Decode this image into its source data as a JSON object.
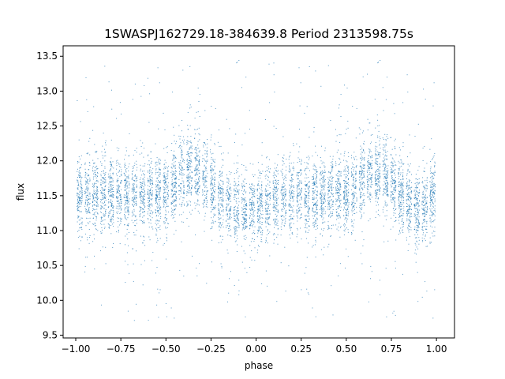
{
  "chart_data": {
    "type": "scatter",
    "title": "1SWASPJ162729.18-384639.8 Period 2313598.75s",
    "xlabel": "phase",
    "ylabel": "flux",
    "xlim": [
      -1.07,
      1.1
    ],
    "ylim": [
      9.46,
      13.65
    ],
    "x_ticks": [
      -1.0,
      -0.75,
      -0.5,
      -0.25,
      0.0,
      0.25,
      0.5,
      0.75,
      1.0
    ],
    "x_tick_labels": [
      "−1.00",
      "−0.75",
      "−0.50",
      "−0.25",
      "0.00",
      "0.25",
      "0.50",
      "0.75",
      "1.00"
    ],
    "y_ticks": [
      9.5,
      10.0,
      10.5,
      11.0,
      11.5,
      12.0,
      12.5,
      13.0,
      13.5
    ],
    "y_tick_labels": [
      "9.5",
      "10.0",
      "10.5",
      "11.0",
      "11.5",
      "12.0",
      "12.5",
      "13.0",
      "13.5"
    ],
    "grid": false,
    "legend": "none",
    "marker_color": "#1f77b4",
    "point_density_profile": {
      "phase_range": [
        -1.0,
        1.0
      ],
      "baseline_flux": 11.5,
      "typical_range": [
        11.0,
        12.0
      ],
      "outlier_range": [
        9.7,
        13.45
      ],
      "brighter_phases": [
        -0.4,
        -0.3,
        0.6,
        0.7
      ],
      "dimmer_phases": [
        -0.1,
        0.0,
        0.9
      ]
    }
  }
}
